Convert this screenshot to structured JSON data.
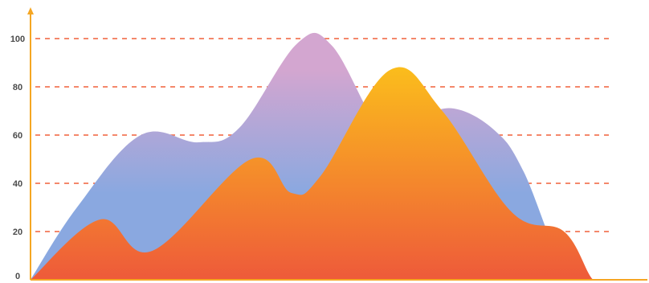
{
  "chart_data": {
    "type": "area",
    "title": "",
    "xlabel": "",
    "ylabel": "",
    "ylim": [
      0,
      110
    ],
    "xlim": [
      0,
      100
    ],
    "grid": true,
    "yticks": [
      0,
      20,
      40,
      60,
      80,
      100
    ],
    "yticklabels": [
      "0",
      "20",
      "40",
      "60",
      "80",
      "100"
    ],
    "colors": {
      "axis": "#f5a623",
      "grid": "#f0603a",
      "back_top": "#d3a6d0",
      "back_bottom": "#8aa8e0",
      "front_top": "#fbbd1c",
      "front_bottom": "#ee5a3a"
    },
    "series": [
      {
        "x": [
          0,
          8,
          19,
          29,
          36,
          46,
          52,
          61,
          67,
          73,
          80,
          85,
          93,
          100
        ],
        "values": [
          0,
          30,
          60,
          57,
          63,
          98,
          97,
          60,
          67,
          71,
          62,
          45,
          0,
          0
        ]
      },
      {
        "x": [
          0,
          12,
          21,
          38,
          45,
          50,
          62,
          71,
          83,
          92,
          97,
          100
        ],
        "values": [
          0,
          25,
          12,
          50,
          36,
          43,
          87,
          70,
          28,
          20,
          0,
          0
        ]
      }
    ]
  }
}
